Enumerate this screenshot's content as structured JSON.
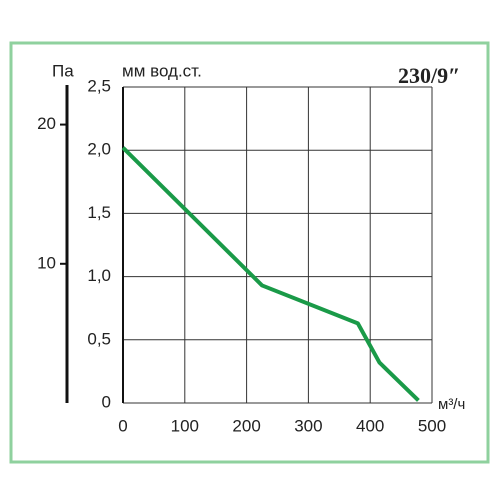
{
  "chart_data": {
    "type": "line",
    "title": "230/9″",
    "y_label": "мм вод.ст.",
    "y2_label": "Па",
    "x_label": "м³/ч",
    "x": [
      0,
      225,
      380,
      415,
      478
    ],
    "series": [
      {
        "color": "#1a9a48",
        "values": [
          2.02,
          0.93,
          0.63,
          0.32,
          0.02
        ]
      }
    ],
    "xlim": [
      0,
      500
    ],
    "xticks": [
      0,
      100,
      200,
      300,
      400,
      500
    ],
    "ylim": [
      0,
      2.5
    ],
    "yticks": [
      {
        "value": 0,
        "label": "0"
      },
      {
        "value": 0.5,
        "label": "0,5"
      },
      {
        "value": 1,
        "label": "1,0"
      },
      {
        "value": 1.5,
        "label": "1,5"
      },
      {
        "value": 2,
        "label": "2,0"
      },
      {
        "value": 2.5,
        "label": "2,5"
      }
    ],
    "y2lim": [
      0,
      22.7
    ],
    "y2ticks": [
      10,
      20
    ],
    "grid": true
  }
}
